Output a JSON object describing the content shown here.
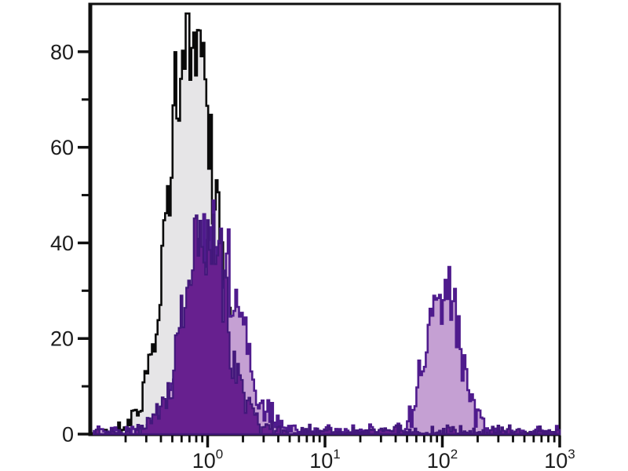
{
  "figure": {
    "background": "#ffffff",
    "frame_color": "#0f0f0f",
    "tick_color": "#0f0f0f",
    "label_color": "#1c1c1c"
  },
  "chart_data": {
    "type": "area",
    "chart_kind": "flow-cytometry-histogram-overlay",
    "title": "",
    "xlabel": "",
    "ylabel": "",
    "x_scale": "log10",
    "x_log_range": [
      -1,
      3
    ],
    "y_range": [
      0,
      90
    ],
    "grid": false,
    "legend": "none",
    "y_major_ticks": [
      {
        "value": 0,
        "label": "0"
      },
      {
        "value": 20,
        "label": "20"
      },
      {
        "value": 40,
        "label": "40"
      },
      {
        "value": 60,
        "label": "60"
      },
      {
        "value": 80,
        "label": "80"
      }
    ],
    "y_minor_ticks": [
      10,
      30,
      50,
      70
    ],
    "x_major_ticks": [
      {
        "value": 1,
        "label_base": "10",
        "label_exp": "0"
      },
      {
        "value": 10,
        "label_base": "10",
        "label_exp": "1"
      },
      {
        "value": 100,
        "label_base": "10",
        "label_exp": "2"
      },
      {
        "value": 1000,
        "label_base": "10",
        "label_exp": "3"
      }
    ],
    "x_minor_tick_multipliers": [
      2,
      3,
      4,
      5,
      6,
      7,
      8,
      9
    ],
    "series": [
      {
        "name": "gray-open-black-outline-histogram",
        "fill": "#e6e5e7",
        "stroke": "#0a0a0a",
        "stroke_width": 2.6,
        "seed": 1123,
        "extent_log10": [
          -0.97,
          0.58
        ],
        "baseline_noise": 0.35,
        "peaks": [
          {
            "center_log10": -0.13,
            "sigma_log10": 0.2,
            "height": 83
          }
        ],
        "apex_readings": [
          {
            "x_value": 0.75,
            "y_value": 87
          }
        ]
      },
      {
        "name": "light-purple-filled-histogram",
        "fill": "#c5a0d3",
        "stroke": "#4f1b8d",
        "stroke_width": 2.6,
        "seed": 524,
        "extent_log10": [
          -0.97,
          3.0
        ],
        "baseline_noise": 0.85,
        "peaks": [
          {
            "center_log10": 0.05,
            "sigma_log10": 0.215,
            "height": 40
          },
          {
            "center_log10": 1.88,
            "sigma_log10": 0.1,
            "height": 8
          },
          {
            "center_log10": 2.03,
            "sigma_log10": 0.125,
            "height": 27
          }
        ],
        "apex_readings": [
          {
            "x_value": 1.1,
            "y_value": 44
          },
          {
            "x_value": 107,
            "y_value": 31
          }
        ]
      },
      {
        "name": "dark-purple-filled-histogram",
        "fill": "#67208f",
        "stroke": "#42187b",
        "stroke_width": 2.2,
        "seed": 77,
        "extent_log10": [
          -0.97,
          3.0
        ],
        "baseline_noise": 0.8,
        "peaks": [
          {
            "center_log10": -0.02,
            "sigma_log10": 0.185,
            "height": 42
          }
        ],
        "apex_readings": [
          {
            "x_value": 0.95,
            "y_value": 47
          }
        ]
      }
    ]
  }
}
